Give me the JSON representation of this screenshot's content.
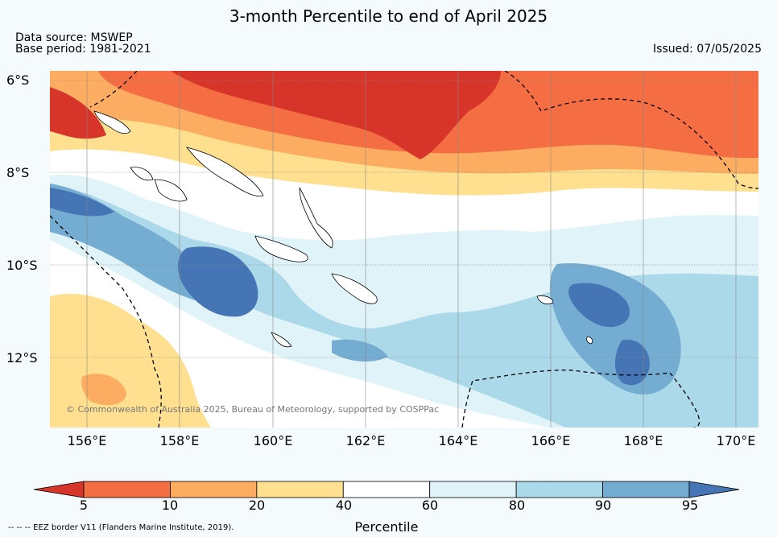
{
  "title": "3-month Percentile to end of April 2025",
  "data_source": "Data source: MSWEP",
  "base_period": "Base period: 1981-2021",
  "issued": "Issued: 07/05/2025",
  "lat_labels": [
    "6°S",
    "8°S",
    "10°S",
    "12°S"
  ],
  "lon_labels": [
    "156°E",
    "158°E",
    "160°E",
    "162°E",
    "164°E",
    "166°E",
    "168°E",
    "170°E"
  ],
  "copyright": "© Commonwealth of Australia 2025, Bureau of Meteorology, supported by COSPPac",
  "eez_note": "--  --  -- EEZ border V11 (Flanders Marine Institute, 2019).",
  "colorbar": {
    "title": "Percentile",
    "ticks": [
      "5",
      "10",
      "20",
      "40",
      "60",
      "80",
      "90",
      "95"
    ],
    "colors": [
      "#d7342a",
      "#f46d43",
      "#fdad61",
      "#fee090",
      "#ffffff",
      "#e0f3f8",
      "#abd9e9",
      "#74add1",
      "#4575b4"
    ]
  }
}
